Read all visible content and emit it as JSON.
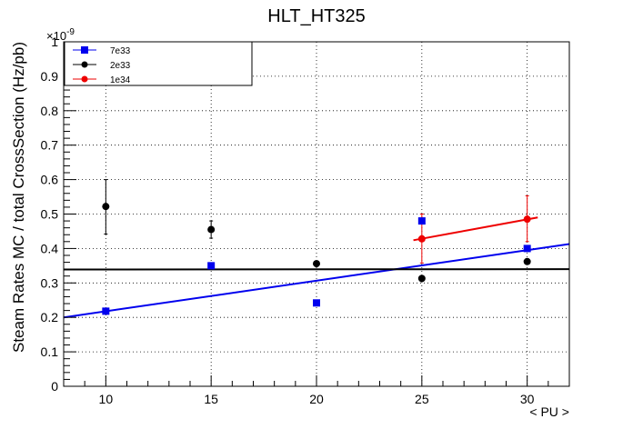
{
  "chart_data": {
    "type": "scatter",
    "title": "HLT_HT325",
    "xlabel": "< PU >",
    "ylabel": "Steam Rates MC / total CrossSection (Hz/pb)",
    "y_exponent_label": "×10",
    "y_exponent_power": "-9",
    "xlim": [
      8,
      32
    ],
    "ylim": [
      0,
      1
    ],
    "x_ticks": [
      10,
      15,
      20,
      25,
      30
    ],
    "x_tick_labels": [
      "10",
      "15",
      "20",
      "25",
      "30"
    ],
    "y_ticks": [
      0,
      0.1,
      0.2,
      0.3,
      0.4,
      0.5,
      0.6,
      0.7,
      0.8,
      0.9,
      1
    ],
    "y_tick_labels": [
      "0",
      "0.1",
      "0.2",
      "0.3",
      "0.4",
      "0.5",
      "0.6",
      "0.7",
      "0.8",
      "0.9",
      "1"
    ],
    "grid": true,
    "legend_position": "top-left",
    "series": [
      {
        "name": "7e33",
        "color": "#0000ee",
        "marker": "square",
        "points": [
          {
            "x": 10,
            "y": 0.218
          },
          {
            "x": 15,
            "y": 0.35
          },
          {
            "x": 20,
            "y": 0.242
          },
          {
            "x": 25,
            "y": 0.48
          },
          {
            "x": 30,
            "y": 0.4
          }
        ],
        "fit": {
          "x_start": 8,
          "y_start": 0.2,
          "x_end": 32,
          "y_end": 0.413
        }
      },
      {
        "name": "2e33",
        "color": "#000000",
        "marker": "circle",
        "points": [
          {
            "x": 10,
            "y": 0.522,
            "err_low": 0.442,
            "err_high": 0.6
          },
          {
            "x": 15,
            "y": 0.455,
            "err_low": 0.43,
            "err_high": 0.48
          },
          {
            "x": 20,
            "y": 0.356
          },
          {
            "x": 25,
            "y": 0.313
          },
          {
            "x": 30,
            "y": 0.362
          }
        ],
        "fit": {
          "x_start": 8,
          "y_start": 0.339,
          "x_end": 32,
          "y_end": 0.34
        }
      },
      {
        "name": "1e34",
        "color": "#ee0000",
        "marker": "circle",
        "points": [
          {
            "x": 25,
            "y": 0.428,
            "err_low": 0.358,
            "err_high": 0.5
          },
          {
            "x": 30,
            "y": 0.485,
            "err_low": 0.42,
            "err_high": 0.553
          }
        ],
        "fit": {
          "x_start": 24.6,
          "y_start": 0.424,
          "x_end": 30.5,
          "y_end": 0.49
        }
      }
    ]
  }
}
